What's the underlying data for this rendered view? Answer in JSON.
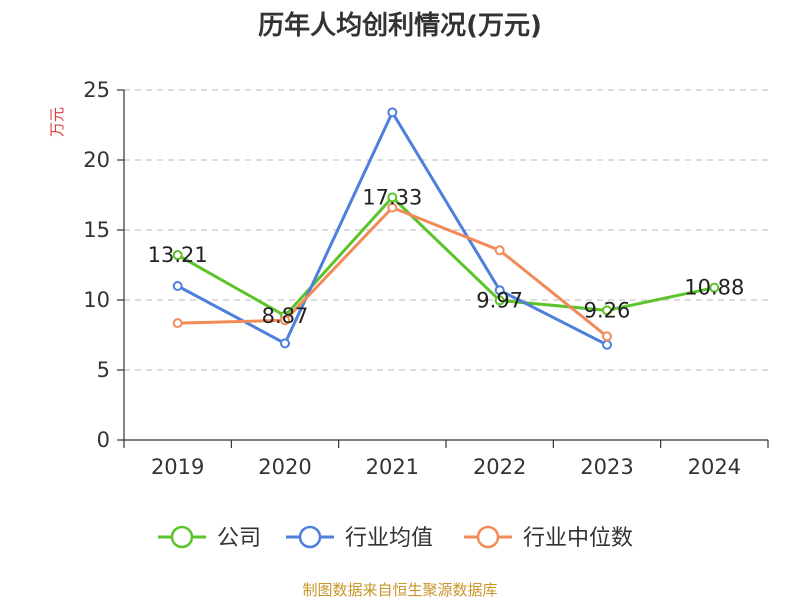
{
  "chart_data": {
    "type": "line",
    "title": "历年人均创利情况(万元)",
    "ylabel": "万元",
    "xlabel": "",
    "categories": [
      "2019",
      "2020",
      "2021",
      "2022",
      "2023",
      "2024"
    ],
    "ylim": [
      0,
      25
    ],
    "yticks": [
      0,
      5,
      10,
      15,
      20,
      25
    ],
    "grid": "horizontal dashed",
    "legend_position": "bottom",
    "series": [
      {
        "name": "公司",
        "color": "#5bc42b",
        "values": [
          13.21,
          8.87,
          17.33,
          9.97,
          9.26,
          10.88
        ]
      },
      {
        "name": "行业均值",
        "color": "#4f7fdc",
        "values": [
          11.0,
          6.9,
          23.4,
          10.7,
          6.8,
          null
        ]
      },
      {
        "name": "行业中位数",
        "color": "#f28b5a",
        "values": [
          8.35,
          8.55,
          16.6,
          13.55,
          7.4,
          null
        ]
      }
    ],
    "data_labels": {
      "series": "公司",
      "values": [
        "13.21",
        "8.87",
        "17.33",
        "9.97",
        "9.26",
        "10.88"
      ]
    }
  },
  "footer": "制图数据来自恒生聚源数据库",
  "colors": {
    "ylabel": "#e03c3c",
    "footer": "#c8952a",
    "grid": "#c8c8c8",
    "axis": "#333333"
  }
}
